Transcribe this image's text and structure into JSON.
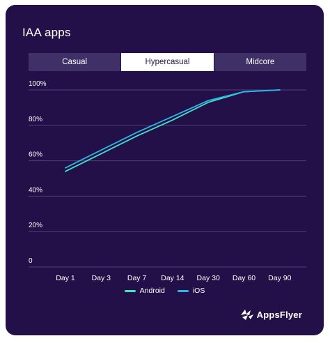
{
  "title": "IAA apps",
  "tabs": [
    {
      "label": "Casual",
      "active": false
    },
    {
      "label": "Hypercasual",
      "active": true
    },
    {
      "label": "Midcore",
      "active": false
    }
  ],
  "brand": {
    "name": "AppsFlyer",
    "icon": "appsflyer-logo-icon"
  },
  "colors": {
    "background": "#231049",
    "android": "#3ee6c2",
    "ios": "#2fb4ea",
    "grid": "#4e4275",
    "text": "#ffffff"
  },
  "chart_data": {
    "type": "line",
    "categories": [
      "Day 1",
      "Day 3",
      "Day 7",
      "Day 14",
      "Day 30",
      "Day 60",
      "Day 90"
    ],
    "series": [
      {
        "name": "Android",
        "values": [
          54,
          64,
          74,
          83,
          93,
          99,
          100
        ]
      },
      {
        "name": "iOS",
        "values": [
          56,
          66,
          76,
          85,
          94,
          99,
          100
        ]
      }
    ],
    "yticks": [
      "0",
      "20%",
      "40%",
      "60%",
      "80%",
      "100%"
    ],
    "ylim": [
      0,
      100
    ],
    "grid": true,
    "legend_position": "bottom"
  }
}
